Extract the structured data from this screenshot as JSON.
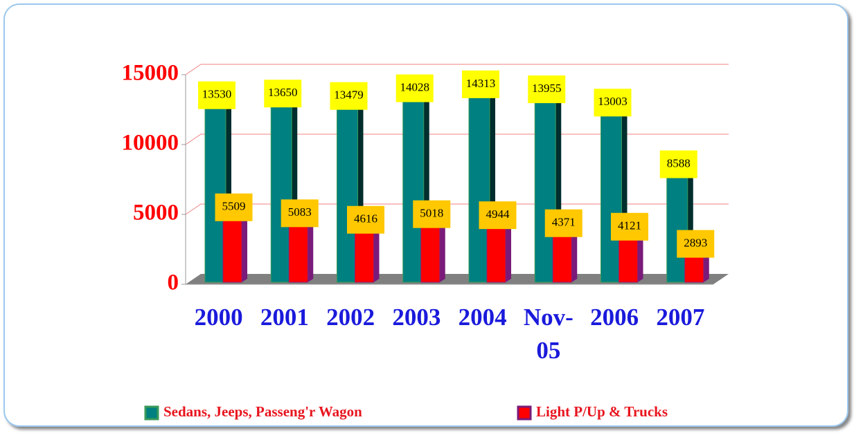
{
  "chart_data": {
    "type": "bar3d",
    "categories": [
      "2000",
      "2001",
      "2002",
      "2003",
      "2004",
      "Nov-05",
      "2006",
      "2007"
    ],
    "series": [
      {
        "name": "Sedans, Jeeps, Passeng'r Wagon",
        "color": "#008080",
        "values": [
          13530,
          13650,
          13479,
          14028,
          14313,
          13955,
          13003,
          8588
        ]
      },
      {
        "name": "Light P/Up & Trucks",
        "color": "#ff0000",
        "values": [
          5509,
          5083,
          4616,
          5018,
          4944,
          4371,
          4121,
          2893
        ]
      }
    ],
    "ylim": [
      0,
      15000
    ],
    "yticks": [
      0,
      5000,
      10000,
      15000
    ],
    "grid": true,
    "legend": "bottom"
  }
}
